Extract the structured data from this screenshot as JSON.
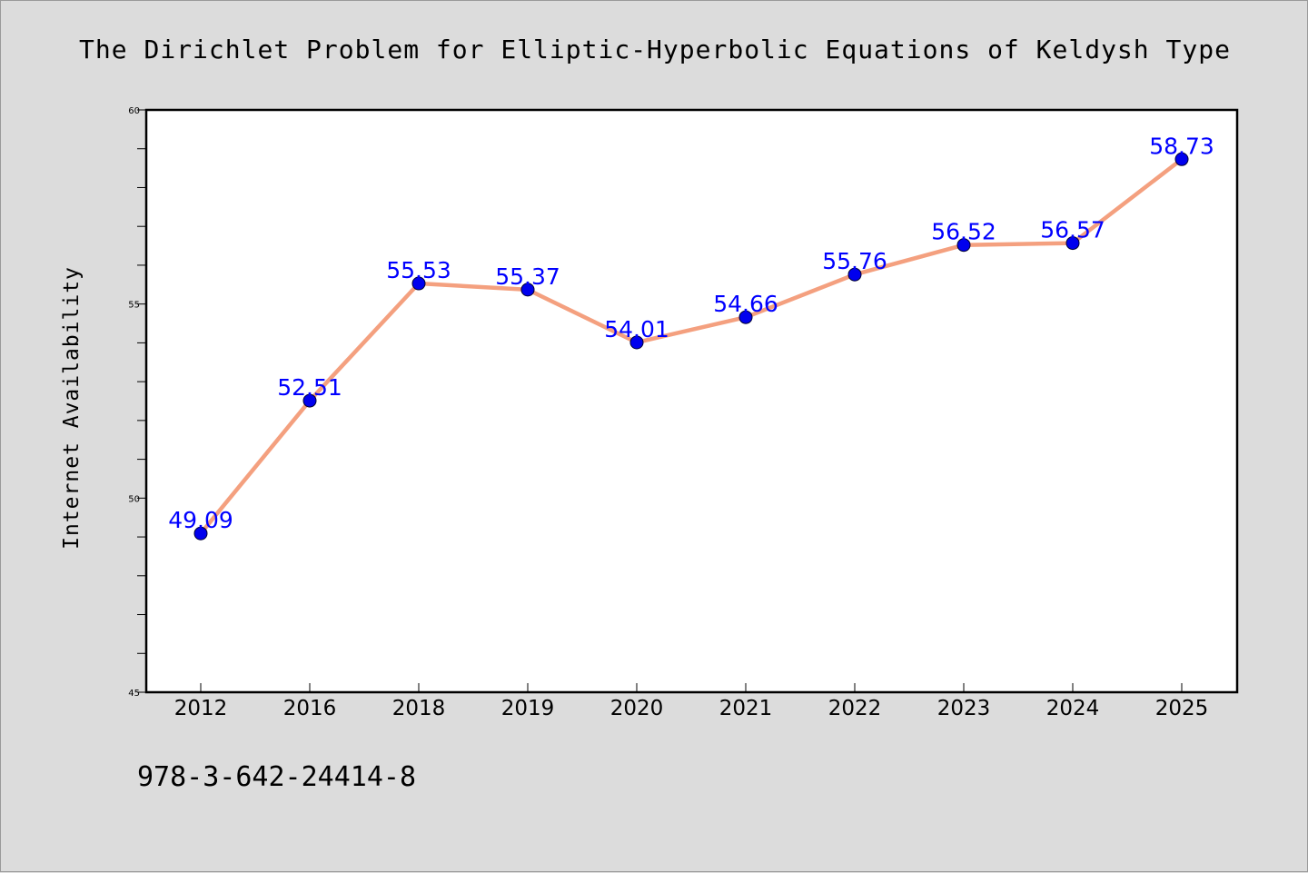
{
  "chart_data": {
    "type": "line",
    "title": "The Dirichlet Problem for Elliptic-Hyperbolic Equations of Keldysh Type",
    "xlabel": "",
    "ylabel": "Internet Availability",
    "categories": [
      "2012",
      "2016",
      "2018",
      "2019",
      "2020",
      "2021",
      "2022",
      "2023",
      "2024",
      "2025"
    ],
    "series": [
      {
        "values": [
          49.09,
          52.51,
          55.53,
          55.37,
          54.01,
          54.66,
          55.76,
          56.52,
          56.57,
          58.73
        ],
        "labels": [
          "49.09",
          "52.51",
          "55.53",
          "55.37",
          "54.01",
          "54.66",
          "55.76",
          "56.52",
          "56.57",
          "58.73"
        ],
        "line_color": "#f4a07f",
        "marker_color": "#0000ee"
      }
    ],
    "ylim": [
      45,
      60
    ],
    "yticks": [
      45,
      50,
      55,
      60
    ],
    "grid": false,
    "legend": "none"
  },
  "footer": {
    "isbn": "978-3-642-24414-8"
  },
  "colors": {
    "background": "#dcdcdc",
    "plot_background": "#ffffff",
    "data_label": "#0000ff"
  }
}
